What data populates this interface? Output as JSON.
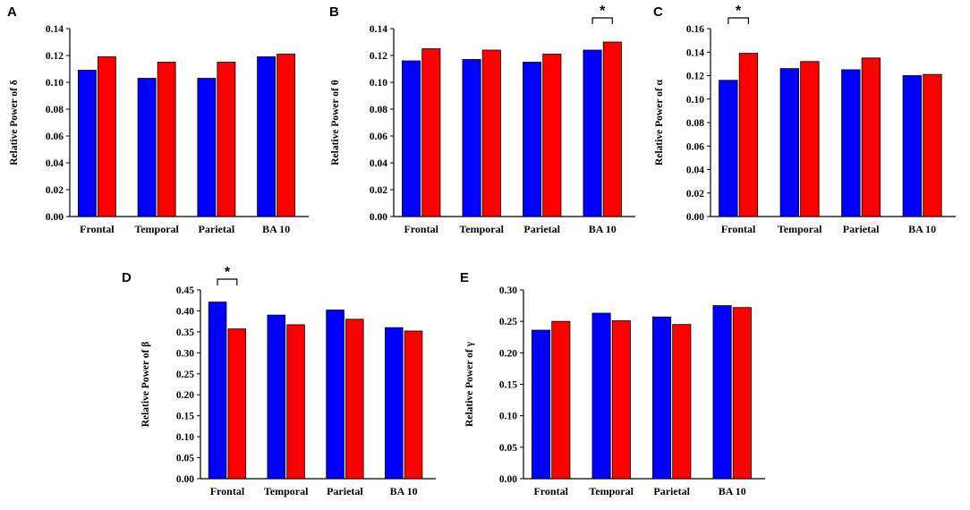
{
  "colors": {
    "group1": "#0000ff",
    "group2": "#ff0000",
    "axis": "#000000"
  },
  "chart_data": [
    {
      "panel": "A",
      "type": "bar",
      "categories": [
        "Frontal",
        "Temporal",
        "Parietal",
        "BA 10"
      ],
      "series": [
        {
          "name": "group1",
          "values": [
            0.109,
            0.103,
            0.103,
            0.119
          ]
        },
        {
          "name": "group2",
          "values": [
            0.119,
            0.115,
            0.115,
            0.121
          ]
        }
      ],
      "ylabel": "Relative Power of δ",
      "ylim": [
        0,
        0.14
      ],
      "yticks": [
        "0.00",
        "0.02",
        "0.04",
        "0.06",
        "0.08",
        "0.10",
        "0.12",
        "0.14"
      ],
      "significance": []
    },
    {
      "panel": "B",
      "type": "bar",
      "categories": [
        "Frontal",
        "Temporal",
        "Parietal",
        "BA 10"
      ],
      "series": [
        {
          "name": "group1",
          "values": [
            0.116,
            0.117,
            0.115,
            0.124
          ]
        },
        {
          "name": "group2",
          "values": [
            0.125,
            0.124,
            0.121,
            0.13
          ]
        }
      ],
      "ylabel": "Relative Power of θ",
      "ylim": [
        0,
        0.14
      ],
      "yticks": [
        "0.00",
        "0.02",
        "0.04",
        "0.06",
        "0.08",
        "0.10",
        "0.12",
        "0.14"
      ],
      "significance": [
        {
          "category": 3,
          "label": "*"
        }
      ]
    },
    {
      "panel": "C",
      "type": "bar",
      "categories": [
        "Frontal",
        "Temporal",
        "Parietal",
        "BA 10"
      ],
      "series": [
        {
          "name": "group1",
          "values": [
            0.116,
            0.126,
            0.125,
            0.12
          ]
        },
        {
          "name": "group2",
          "values": [
            0.139,
            0.132,
            0.135,
            0.121
          ]
        }
      ],
      "ylabel": "Relative Power of α",
      "ylim": [
        0,
        0.16
      ],
      "yticks": [
        "0.00",
        "0.02",
        "0.04",
        "0.06",
        "0.08",
        "0.10",
        "0.12",
        "0.14",
        "0.16"
      ],
      "significance": [
        {
          "category": 0,
          "label": "*"
        }
      ]
    },
    {
      "panel": "D",
      "type": "bar",
      "categories": [
        "Frontal",
        "Temporal",
        "Parietal",
        "BA 10"
      ],
      "series": [
        {
          "name": "group1",
          "values": [
            0.421,
            0.39,
            0.402,
            0.36
          ]
        },
        {
          "name": "group2",
          "values": [
            0.357,
            0.367,
            0.38,
            0.352
          ]
        }
      ],
      "ylabel": "Relative Power of β",
      "ylim": [
        0,
        0.45
      ],
      "yticks": [
        "0.00",
        "0.05",
        "0.10",
        "0.15",
        "0.20",
        "0.25",
        "0.30",
        "0.35",
        "0.40",
        "0.45"
      ],
      "significance": [
        {
          "category": 0,
          "label": "*"
        }
      ]
    },
    {
      "panel": "E",
      "type": "bar",
      "categories": [
        "Frontal",
        "Temporal",
        "Parietal",
        "BA 10"
      ],
      "series": [
        {
          "name": "group1",
          "values": [
            0.236,
            0.263,
            0.257,
            0.275
          ]
        },
        {
          "name": "group2",
          "values": [
            0.25,
            0.251,
            0.245,
            0.272
          ]
        }
      ],
      "ylabel": "Relative Power of γ",
      "ylim": [
        0,
        0.3
      ],
      "yticks": [
        "0.00",
        "0.05",
        "0.10",
        "0.15",
        "0.20",
        "0.25",
        "0.30"
      ],
      "significance": []
    }
  ]
}
